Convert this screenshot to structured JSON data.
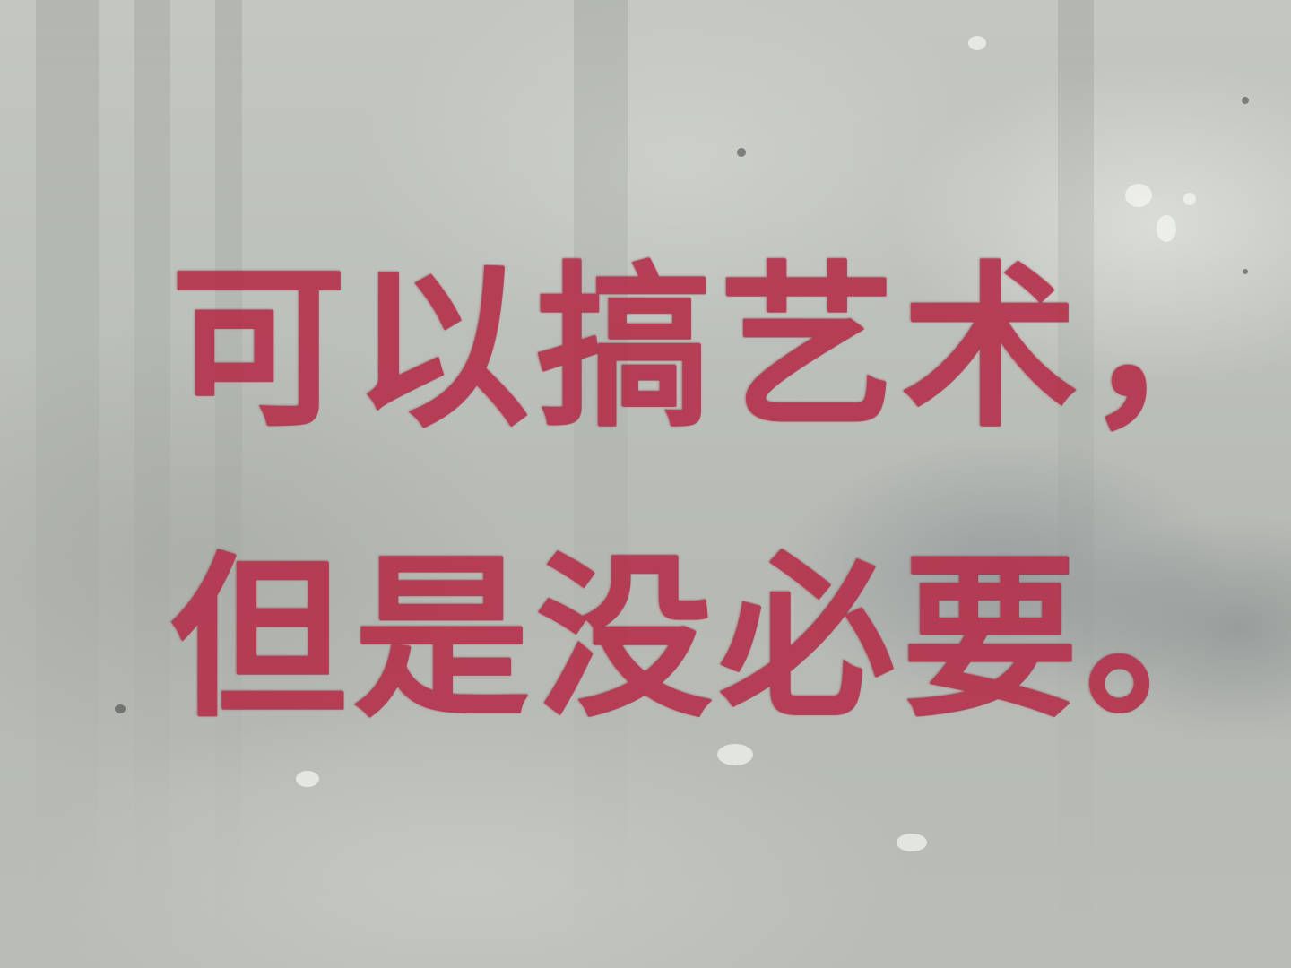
{
  "photo": {
    "subject": "stencil-graffiti",
    "colors": {
      "wall": "#bcc0ba",
      "paint": "#b5334d"
    }
  },
  "stencil_text": {
    "line_1": "可以搞艺术，",
    "line_2": "但是没必要。"
  }
}
